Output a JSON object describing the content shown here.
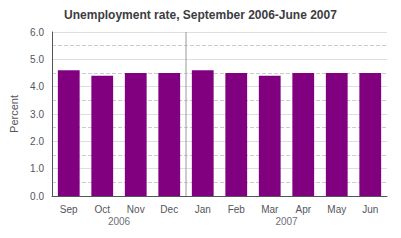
{
  "chart_data": {
    "type": "bar",
    "title": "Unemployment rate, September 2006-June 2007",
    "categories": [
      "Sep",
      "Oct",
      "Nov",
      "Dec",
      "Jan",
      "Feb",
      "Mar",
      "Apr",
      "May",
      "Jun"
    ],
    "values": [
      4.6,
      4.4,
      4.5,
      4.5,
      4.6,
      4.5,
      4.4,
      4.5,
      4.5,
      4.5
    ],
    "color": "#800080",
    "ylabel": "Percent",
    "ylim": [
      0.0,
      6.0
    ],
    "yticks": [
      {
        "value": 0.0,
        "label": "0.0"
      },
      {
        "value": 1.0,
        "label": "1.0"
      },
      {
        "value": 2.0,
        "label": "2.0"
      },
      {
        "value": 3.0,
        "label": "3.0"
      },
      {
        "value": 4.0,
        "label": "4.0"
      },
      {
        "value": 5.0,
        "label": "5.0"
      },
      {
        "value": 6.0,
        "label": "6.0"
      }
    ],
    "grid": true,
    "annotations": [
      {
        "text": "2006",
        "from": "Sep",
        "to": "Dec"
      },
      {
        "text": "2007",
        "from": "Jan",
        "to": "Jun"
      }
    ]
  }
}
